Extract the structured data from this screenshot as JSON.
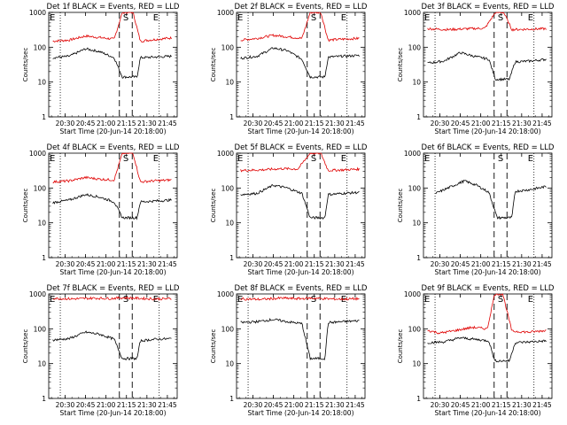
{
  "figure": {
    "black_color": "#000000",
    "red_color": "#e00000",
    "ylabel": "Counts/sec",
    "xlabel": "Start Time (20-Jun-14 20:18:00)"
  },
  "chart_data": [
    {
      "type": "line",
      "title": "Det 1f BLACK = Events, RED = LLD",
      "ylabel": "Counts/sec",
      "xlabel": "Start Time (20-Jun-14 20:18:00)",
      "yscale": "log",
      "ylim": [
        1,
        1000
      ],
      "y_ticks": [
        "1",
        "10",
        "100",
        "1000"
      ],
      "x_ticks": [
        "20:30",
        "20:45",
        "21:00",
        "21:15",
        "21:30",
        "21:45"
      ],
      "markers": [
        "E",
        "S",
        "E"
      ],
      "series": [
        {
          "color": "red",
          "shape": [
            [
              20.35,
              150
            ],
            [
              20.55,
              160
            ],
            [
              20.75,
              210
            ],
            [
              20.92,
              190
            ],
            [
              21.1,
              170
            ],
            [
              21.2,
              1000
            ],
            [
              21.33,
              1000
            ],
            [
              21.42,
              150
            ],
            [
              21.58,
              165
            ],
            [
              21.8,
              185
            ]
          ]
        },
        {
          "color": "black",
          "shape": [
            [
              20.35,
              50
            ],
            [
              20.55,
              55
            ],
            [
              20.75,
              90
            ],
            [
              20.92,
              75
            ],
            [
              21.1,
              50
            ],
            [
              21.2,
              14
            ],
            [
              21.38,
              14
            ],
            [
              21.42,
              50
            ],
            [
              21.58,
              52
            ],
            [
              21.8,
              55
            ]
          ]
        }
      ]
    },
    {
      "type": "line",
      "title": "Det 2f BLACK = Events, RED = LLD",
      "ylabel": "Counts/sec",
      "xlabel": "Start Time (20-Jun-14 20:18:00)",
      "yscale": "log",
      "ylim": [
        1,
        1000
      ],
      "y_ticks": [
        "1",
        "10",
        "100",
        "1000"
      ],
      "x_ticks": [
        "20:30",
        "20:45",
        "21:00",
        "21:15",
        "21:30",
        "21:45"
      ],
      "markers": [
        "E",
        "S",
        "E"
      ],
      "series": [
        {
          "color": "red",
          "shape": [
            [
              20.35,
              160
            ],
            [
              20.55,
              180
            ],
            [
              20.75,
              220
            ],
            [
              20.92,
              200
            ],
            [
              21.1,
              180
            ],
            [
              21.2,
              1000
            ],
            [
              21.33,
              1000
            ],
            [
              21.42,
              160
            ],
            [
              21.58,
              170
            ],
            [
              21.8,
              180
            ]
          ]
        },
        {
          "color": "black",
          "shape": [
            [
              20.35,
              48
            ],
            [
              20.55,
              55
            ],
            [
              20.75,
              95
            ],
            [
              20.92,
              80
            ],
            [
              21.1,
              45
            ],
            [
              21.2,
              14
            ],
            [
              21.38,
              14
            ],
            [
              21.42,
              52
            ],
            [
              21.58,
              55
            ],
            [
              21.8,
              58
            ]
          ]
        }
      ]
    },
    {
      "type": "line",
      "title": "Det 3f BLACK = Events, RED = LLD",
      "ylabel": "Counts/sec",
      "xlabel": "Start Time (20-Jun-14 20:18:00)",
      "yscale": "log",
      "ylim": [
        1,
        1000
      ],
      "y_ticks": [
        "1",
        "10",
        "100",
        "1000"
      ],
      "x_ticks": [
        "20:30",
        "20:45",
        "21:00",
        "21:15",
        "21:30",
        "21:45"
      ],
      "markers": [
        "E",
        "S",
        "E"
      ],
      "series": [
        {
          "color": "red",
          "shape": [
            [
              20.35,
              340
            ],
            [
              20.6,
              320
            ],
            [
              20.85,
              340
            ],
            [
              21.05,
              350
            ],
            [
              21.18,
              1000
            ],
            [
              21.28,
              1000
            ],
            [
              21.38,
              320
            ],
            [
              21.6,
              330
            ],
            [
              21.8,
              340
            ]
          ]
        },
        {
          "color": "black",
          "shape": [
            [
              20.35,
              35
            ],
            [
              20.55,
              40
            ],
            [
              20.75,
              70
            ],
            [
              20.92,
              55
            ],
            [
              21.1,
              45
            ],
            [
              21.18,
              12
            ],
            [
              21.35,
              12
            ],
            [
              21.42,
              38
            ],
            [
              21.6,
              40
            ],
            [
              21.8,
              45
            ]
          ]
        }
      ]
    },
    {
      "type": "line",
      "title": "Det 4f BLACK = Events, RED = LLD",
      "ylabel": "Counts/sec",
      "xlabel": "Start Time (20-Jun-14 20:18:00)",
      "yscale": "log",
      "ylim": [
        1,
        1000
      ],
      "y_ticks": [
        "1",
        "10",
        "100",
        "1000"
      ],
      "x_ticks": [
        "20:30",
        "20:45",
        "21:00",
        "21:15",
        "21:30",
        "21:45"
      ],
      "markers": [
        "E",
        "S",
        "E"
      ],
      "series": [
        {
          "color": "red",
          "shape": [
            [
              20.35,
              150
            ],
            [
              20.55,
              160
            ],
            [
              20.75,
              200
            ],
            [
              20.92,
              180
            ],
            [
              21.1,
              170
            ],
            [
              21.2,
              1000
            ],
            [
              21.33,
              1000
            ],
            [
              21.42,
              150
            ],
            [
              21.58,
              160
            ],
            [
              21.8,
              170
            ]
          ]
        },
        {
          "color": "black",
          "shape": [
            [
              20.35,
              38
            ],
            [
              20.55,
              45
            ],
            [
              20.75,
              65
            ],
            [
              20.92,
              55
            ],
            [
              21.1,
              40
            ],
            [
              21.2,
              14
            ],
            [
              21.38,
              14
            ],
            [
              21.42,
              40
            ],
            [
              21.58,
              42
            ],
            [
              21.8,
              45
            ]
          ]
        }
      ]
    },
    {
      "type": "line",
      "title": "Det 5f BLACK = Events, RED = LLD",
      "ylabel": "Counts/sec",
      "xlabel": "Start Time (20-Jun-14 20:18:00)",
      "yscale": "log",
      "ylim": [
        1,
        1000
      ],
      "y_ticks": [
        "1",
        "10",
        "100",
        "1000"
      ],
      "x_ticks": [
        "20:30",
        "20:45",
        "21:00",
        "21:15",
        "21:30",
        "21:45"
      ],
      "markers": [
        "E",
        "S",
        "E"
      ],
      "series": [
        {
          "color": "red",
          "shape": [
            [
              20.35,
              320
            ],
            [
              20.6,
              330
            ],
            [
              20.85,
              360
            ],
            [
              21.05,
              350
            ],
            [
              21.2,
              1000
            ],
            [
              21.33,
              1000
            ],
            [
              21.42,
              320
            ],
            [
              21.6,
              330
            ],
            [
              21.8,
              350
            ]
          ]
        },
        {
          "color": "black",
          "shape": [
            [
              20.35,
              65
            ],
            [
              20.55,
              70
            ],
            [
              20.75,
              120
            ],
            [
              20.92,
              100
            ],
            [
              21.1,
              70
            ],
            [
              21.2,
              14
            ],
            [
              21.38,
              14
            ],
            [
              21.42,
              65
            ],
            [
              21.6,
              70
            ],
            [
              21.8,
              75
            ]
          ]
        }
      ]
    },
    {
      "type": "line",
      "title": "Det 6f BLACK = Events, RED = LLD",
      "ylabel": "Counts/sec",
      "xlabel": "Start Time (20-Jun-14 20:18:00)",
      "yscale": "log",
      "ylim": [
        1,
        1000
      ],
      "y_ticks": [
        "1",
        "10",
        "100",
        "1000"
      ],
      "x_ticks": [
        "20:30",
        "20:45",
        "21:00",
        "21:15",
        "21:30",
        "21:45"
      ],
      "markers": [
        "E",
        "S",
        "E"
      ],
      "series": [
        {
          "color": "black",
          "shape": [
            [
              20.45,
              70
            ],
            [
              20.6,
              100
            ],
            [
              20.8,
              160
            ],
            [
              20.95,
              120
            ],
            [
              21.1,
              75
            ],
            [
              21.2,
              14
            ],
            [
              21.38,
              14
            ],
            [
              21.42,
              80
            ],
            [
              21.6,
              90
            ],
            [
              21.8,
              110
            ]
          ]
        }
      ]
    },
    {
      "type": "line",
      "title": "Det 7f BLACK = Events, RED = LLD",
      "ylabel": "Counts/sec",
      "xlabel": "Start Time (20-Jun-14 20:18:00)",
      "yscale": "log",
      "ylim": [
        1,
        1000
      ],
      "y_ticks": [
        "1",
        "10",
        "100",
        "1000"
      ],
      "x_ticks": [
        "20:30",
        "20:45",
        "21:00",
        "21:15",
        "21:30",
        "21:45"
      ],
      "markers": [
        "E",
        "S",
        "E"
      ],
      "series": [
        {
          "color": "red",
          "shape": [
            [
              20.35,
              750
            ],
            [
              20.6,
              720
            ],
            [
              20.85,
              760
            ],
            [
              21.05,
              740
            ],
            [
              21.2,
              780
            ],
            [
              21.33,
              760
            ],
            [
              21.45,
              740
            ],
            [
              21.6,
              720
            ],
            [
              21.8,
              730
            ]
          ]
        },
        {
          "color": "black",
          "shape": [
            [
              20.35,
              48
            ],
            [
              20.55,
              52
            ],
            [
              20.75,
              80
            ],
            [
              20.92,
              70
            ],
            [
              21.1,
              50
            ],
            [
              21.2,
              14
            ],
            [
              21.38,
              14
            ],
            [
              21.42,
              45
            ],
            [
              21.6,
              50
            ],
            [
              21.8,
              52
            ]
          ]
        }
      ]
    },
    {
      "type": "line",
      "title": "Det 8f BLACK = Events, RED = LLD",
      "ylabel": "Counts/sec",
      "xlabel": "Start Time (20-Jun-14 20:18:00)",
      "yscale": "log",
      "ylim": [
        1,
        1000
      ],
      "y_ticks": [
        "1",
        "10",
        "100",
        "1000"
      ],
      "x_ticks": [
        "20:30",
        "20:45",
        "21:00",
        "21:15",
        "21:30",
        "21:45"
      ],
      "markers": [
        "E",
        "S",
        "E"
      ],
      "series": [
        {
          "color": "red",
          "shape": [
            [
              20.35,
              720
            ],
            [
              20.6,
              700
            ],
            [
              20.85,
              760
            ],
            [
              21.05,
              730
            ],
            [
              21.2,
              760
            ],
            [
              21.33,
              740
            ],
            [
              21.45,
              720
            ],
            [
              21.6,
              710
            ],
            [
              21.8,
              730
            ]
          ]
        },
        {
          "color": "black",
          "shape": [
            [
              20.35,
              150
            ],
            [
              20.55,
              160
            ],
            [
              20.75,
              185
            ],
            [
              20.92,
              160
            ],
            [
              21.1,
              140
            ],
            [
              21.2,
              14
            ],
            [
              21.38,
              14
            ],
            [
              21.42,
              150
            ],
            [
              21.6,
              160
            ],
            [
              21.8,
              170
            ]
          ]
        }
      ]
    },
    {
      "type": "line",
      "title": "Det 9f BLACK = Events, RED = LLD",
      "ylabel": "Counts/sec",
      "xlabel": "Start Time (20-Jun-14 20:18:00)",
      "yscale": "log",
      "ylim": [
        1,
        1000
      ],
      "y_ticks": [
        "1",
        "10",
        "100",
        "1000"
      ],
      "x_ticks": [
        "20:30",
        "20:45",
        "21:00",
        "21:15",
        "21:30",
        "21:45"
      ],
      "markers": [
        "E",
        "S",
        "E"
      ],
      "series": [
        {
          "color": "red",
          "shape": [
            [
              20.35,
              90
            ],
            [
              20.5,
              75
            ],
            [
              20.7,
              90
            ],
            [
              20.9,
              110
            ],
            [
              21.08,
              100
            ],
            [
              21.17,
              1000
            ],
            [
              21.27,
              1000
            ],
            [
              21.38,
              85
            ],
            [
              21.6,
              80
            ],
            [
              21.8,
              90
            ]
          ]
        },
        {
          "color": "black",
          "shape": [
            [
              20.35,
              40
            ],
            [
              20.55,
              42
            ],
            [
              20.75,
              55
            ],
            [
              20.92,
              50
            ],
            [
              21.1,
              45
            ],
            [
              21.17,
              12
            ],
            [
              21.35,
              12
            ],
            [
              21.42,
              40
            ],
            [
              21.6,
              42
            ],
            [
              21.8,
              45
            ]
          ]
        }
      ]
    }
  ]
}
